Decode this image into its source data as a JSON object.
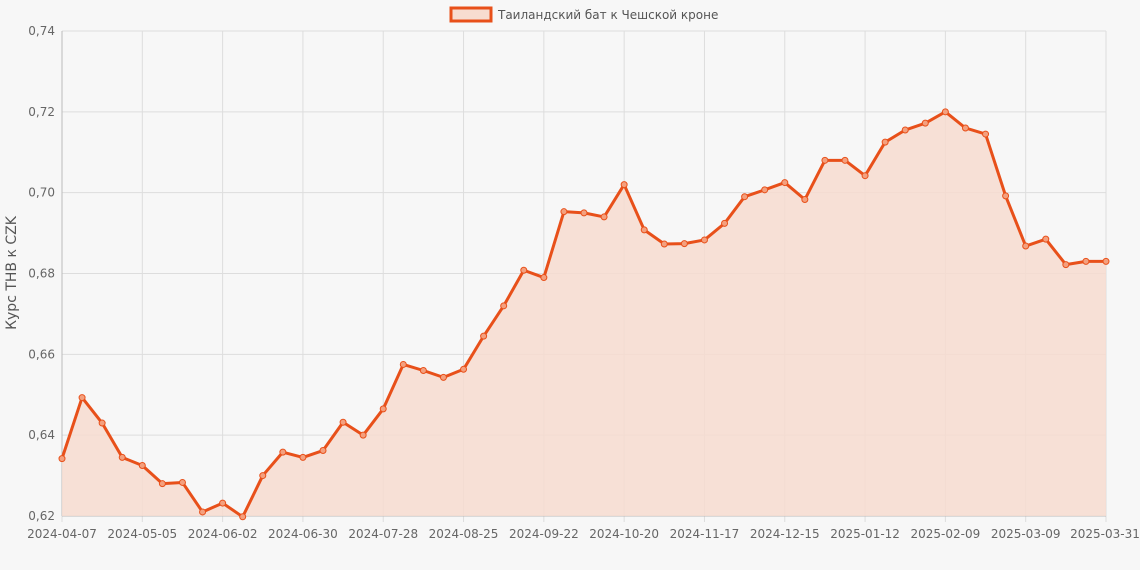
{
  "chart_data": {
    "type": "area",
    "legend": {
      "label": "Таиландский бат к Чешской кроне",
      "position": "top"
    },
    "ylabel": "Курс THB к CZK",
    "xlabel": "",
    "ylim": [
      0.62,
      0.74
    ],
    "yticks": [
      "0,62",
      "0,64",
      "0,66",
      "0,68",
      "0,70",
      "0,72",
      "0,74"
    ],
    "xticks": [
      {
        "label": "2024-04-07",
        "index": 0
      },
      {
        "label": "2024-05-05",
        "index": 4
      },
      {
        "label": "2024-06-02",
        "index": 8
      },
      {
        "label": "2024-06-30",
        "index": 12
      },
      {
        "label": "2024-07-28",
        "index": 16
      },
      {
        "label": "2024-08-25",
        "index": 20
      },
      {
        "label": "2024-09-22",
        "index": 24
      },
      {
        "label": "2024-10-20",
        "index": 28
      },
      {
        "label": "2024-11-17",
        "index": 32
      },
      {
        "label": "2024-12-15",
        "index": 36
      },
      {
        "label": "2025-01-12",
        "index": 40
      },
      {
        "label": "2025-02-09",
        "index": 44
      },
      {
        "label": "2025-03-09",
        "index": 48
      },
      {
        "label": "2025-03-31",
        "index": 52
      }
    ],
    "grid": true,
    "colors": {
      "line": "#e8501a",
      "fill": "#f7dcd0",
      "grid": "#dddddd",
      "axis": "#bbbbbb"
    },
    "series": [
      {
        "values": [
          0.6342,
          0.6493,
          0.643,
          0.6345,
          0.6325,
          0.628,
          0.6283,
          0.621,
          0.6232,
          0.6198,
          0.63,
          0.6358,
          0.6345,
          0.6362,
          0.6432,
          0.64,
          0.6465,
          0.6575,
          0.656,
          0.6543,
          0.6563,
          0.6645,
          0.672,
          0.6808,
          0.679,
          0.6953,
          0.695,
          0.694,
          0.702,
          0.6908,
          0.6873,
          0.6874,
          0.6883,
          0.6924,
          0.699,
          0.7007,
          0.7025,
          0.6983,
          0.708,
          0.708,
          0.7042,
          0.7125,
          0.7155,
          0.7172,
          0.72,
          0.716,
          0.7145,
          0.6992,
          0.6868,
          0.6885,
          0.6822,
          0.683,
          0.683
        ]
      }
    ]
  }
}
